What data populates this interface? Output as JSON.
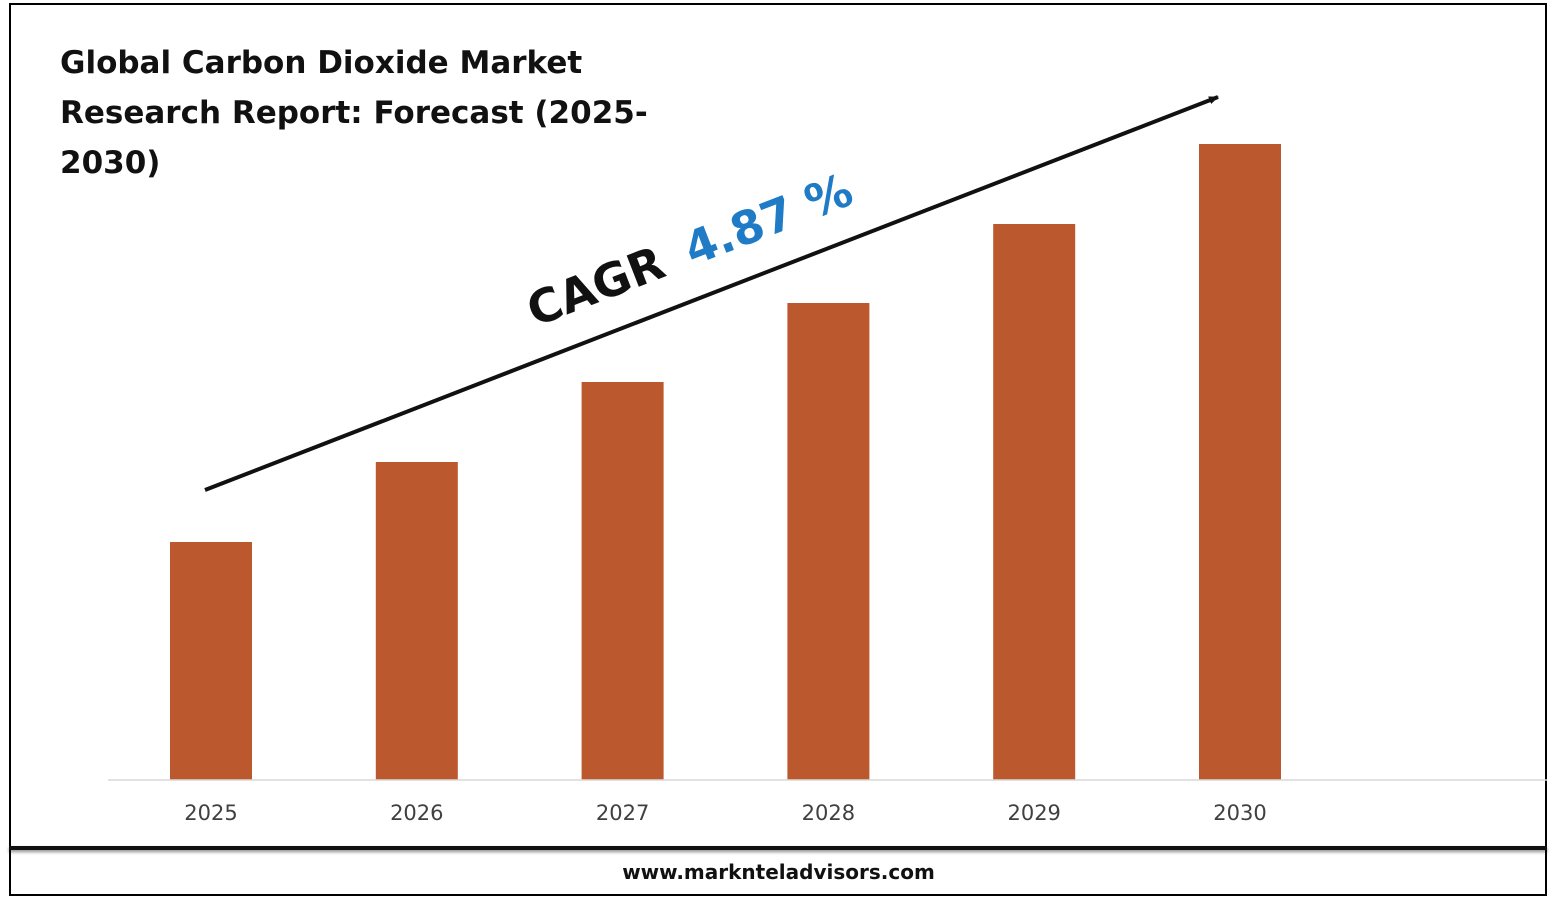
{
  "colors": {
    "bar": "#bc582d",
    "cagr_value": "#1f7bc5",
    "text": "#111111",
    "tick_label": "#404040",
    "axis": "#d9d9d9"
  },
  "chart_data": {
    "type": "bar",
    "title": "Global Carbon Dioxide Market Research Report: Forecast (2025-2030)",
    "categories": [
      "2025",
      "2026",
      "2027",
      "2028",
      "2029",
      "2030"
    ],
    "values": [
      238,
      318,
      398,
      477,
      556,
      636
    ],
    "ylim": [
      0,
      700
    ],
    "value_note": "relative bar heights; no value axis or data labels are printed",
    "grid": false,
    "legend": "none",
    "annotation": {
      "prefix": "CAGR",
      "value": "4.87 %",
      "arrow": "trend arrow rising from left to right above the bars"
    }
  },
  "footer": {
    "website": "www.marknteladvisors.com"
  }
}
